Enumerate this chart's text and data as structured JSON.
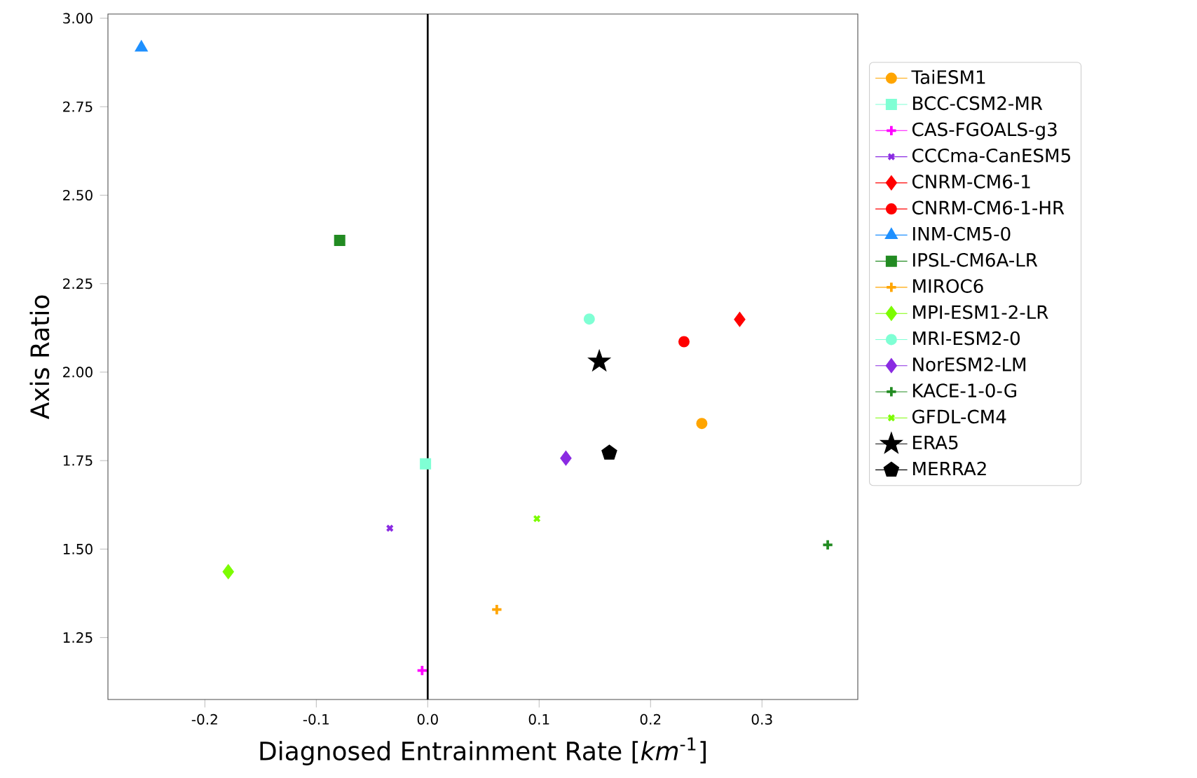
{
  "chart_data": {
    "type": "scatter",
    "xlabel": "Diagnosed Entrainment Rate [*km*$^{-1}$]",
    "ylabel": "Axis Ratio",
    "xlim": [
      -0.287,
      0.386
    ],
    "ylim": [
      1.075,
      3.012
    ],
    "xticks": [
      -0.2,
      -0.1,
      {
        "value": 0.0,
        "label": "0.0"
      },
      0.1,
      0.2,
      0.3
    ],
    "yticks": [
      {
        "value": 1.25,
        "label": "1.25"
      },
      {
        "value": 1.5,
        "label": "1.50"
      },
      {
        "value": 1.75,
        "label": "1.75"
      },
      {
        "value": 2.0,
        "label": "2.00"
      },
      {
        "value": 2.25,
        "label": "2.25"
      },
      {
        "value": 2.5,
        "label": "2.50"
      },
      {
        "value": 2.75,
        "label": "2.75"
      },
      {
        "value": 3.0,
        "label": "3.00"
      }
    ],
    "grid": false,
    "legend": "right",
    "ref_lines": [
      {
        "axis": "x",
        "value": 0,
        "color": "#000000"
      }
    ],
    "series": [
      {
        "name": "TaiESM1",
        "color": "#ffa500",
        "marker": "circle",
        "x": [
          0.246
        ],
        "values": [
          1.855
        ]
      },
      {
        "name": "BCC-CSM2-MR",
        "color": "#7fffd4",
        "marker": "square",
        "x": [
          -0.002
        ],
        "values": [
          1.741
        ]
      },
      {
        "name": "CAS-FGOALS-g3",
        "color": "#ff00ff",
        "marker": "plus",
        "x": [
          -0.005
        ],
        "values": [
          1.157
        ]
      },
      {
        "name": "CCCma-CanESM5",
        "color": "#8a2be2",
        "marker": "x",
        "x": [
          -0.034
        ],
        "values": [
          1.559
        ]
      },
      {
        "name": "CNRM-CM6-1",
        "color": "#ff0000",
        "marker": "diamond",
        "x": [
          0.28
        ],
        "values": [
          2.149
        ]
      },
      {
        "name": "CNRM-CM6-1-HR",
        "color": "#ff0000",
        "marker": "circle",
        "x": [
          0.23
        ],
        "values": [
          2.086
        ]
      },
      {
        "name": "INM-CM5-0",
        "color": "#1e90ff",
        "marker": "triangle",
        "x": [
          -0.257
        ],
        "values": [
          2.917
        ]
      },
      {
        "name": "IPSL-CM6A-LR",
        "color": "#228b22",
        "marker": "square",
        "x": [
          -0.079
        ],
        "values": [
          2.372
        ]
      },
      {
        "name": "MIROC6",
        "color": "#ffa500",
        "marker": "plus",
        "x": [
          0.062
        ],
        "values": [
          1.329
        ]
      },
      {
        "name": "MPI-ESM1-2-LR",
        "color": "#7cfc00",
        "marker": "diamond",
        "x": [
          -0.179
        ],
        "values": [
          1.436
        ]
      },
      {
        "name": "MRI-ESM2-0",
        "color": "#7fffd4",
        "marker": "circle",
        "x": [
          0.145
        ],
        "values": [
          2.15
        ]
      },
      {
        "name": "NorESM2-LM",
        "color": "#8a2be2",
        "marker": "diamond",
        "x": [
          0.124
        ],
        "values": [
          1.757
        ]
      },
      {
        "name": "KACE-1-0-G",
        "color": "#228b22",
        "marker": "plus",
        "x": [
          0.359
        ],
        "values": [
          1.512
        ]
      },
      {
        "name": "GFDL-CM4",
        "color": "#7cfc00",
        "marker": "x",
        "x": [
          0.098
        ],
        "values": [
          1.586
        ]
      },
      {
        "name": "ERA5",
        "color": "#000000",
        "marker": "star",
        "x": [
          0.154
        ],
        "values": [
          2.03
        ]
      },
      {
        "name": "MERRA2",
        "color": "#000000",
        "x": [
          0.163
        ],
        "values": [
          1.772
        ]
      }
    ]
  }
}
